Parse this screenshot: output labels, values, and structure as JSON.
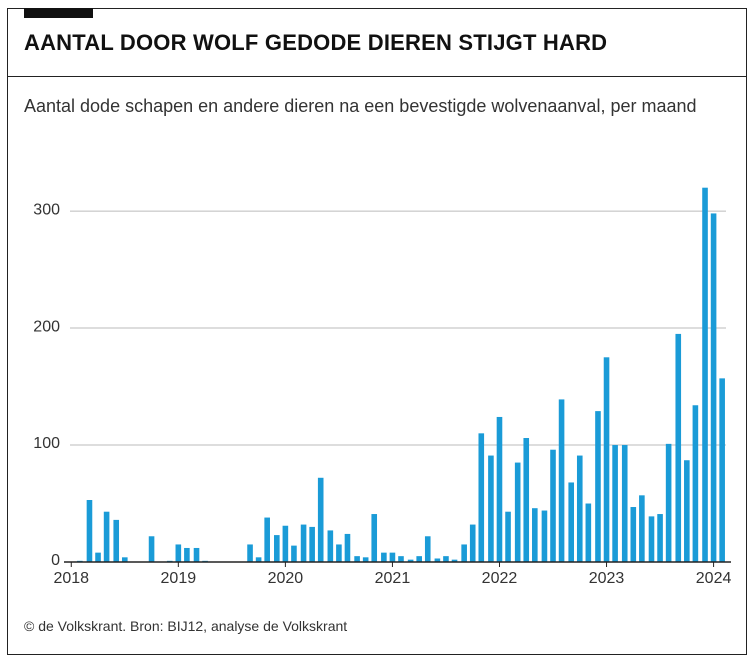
{
  "chart_data": {
    "type": "bar",
    "title": "AANTAL DOOR WOLF GEDODE DIEREN STIJGT HARD",
    "subtitle": "Aantal dode schapen en andere dieren na een bevestigde wolvenaanval, per maand",
    "source": "© de Volkskrant. Bron: BIJ12, analyse de Volkskrant",
    "color": "#1a9bd7",
    "grid": true,
    "x": [
      2018.08,
      2018.17,
      2018.25,
      2018.33,
      2018.42,
      2018.5,
      2018.58,
      2018.67,
      2018.75,
      2018.83,
      2018.92,
      2019,
      2019.08,
      2019.17,
      2019.25,
      2019.33,
      2019.42,
      2019.5,
      2019.58,
      2019.67,
      2019.75,
      2019.83,
      2019.92,
      2020,
      2020.08,
      2020.17,
      2020.25,
      2020.33,
      2020.42,
      2020.5,
      2020.58,
      2020.67,
      2020.75,
      2020.83,
      2020.92,
      2021,
      2021.08,
      2021.17,
      2021.25,
      2021.33,
      2021.42,
      2021.5,
      2021.58,
      2021.67,
      2021.75,
      2021.83,
      2021.92,
      2022,
      2022.08,
      2022.17,
      2022.25,
      2022.33,
      2022.42,
      2022.5,
      2022.58,
      2022.67,
      2022.75,
      2022.83,
      2022.92,
      2023,
      2023.08,
      2023.17,
      2023.25,
      2023.33,
      2023.42,
      2023.5,
      2023.58,
      2023.67,
      2023.75,
      2023.83,
      2023.92,
      2024,
      2024.08
    ],
    "values": [
      1,
      53,
      8,
      43,
      36,
      4,
      0,
      0,
      22,
      0,
      1,
      15,
      12,
      12,
      1,
      0,
      0,
      0,
      0,
      15,
      4,
      38,
      23,
      31,
      14,
      32,
      30,
      72,
      27,
      15,
      24,
      5,
      4,
      41,
      8,
      8,
      5,
      2,
      5,
      22,
      3,
      5,
      2,
      15,
      32,
      110,
      91,
      124,
      43,
      85,
      106,
      46,
      44,
      96,
      139,
      68,
      91,
      50,
      129,
      175,
      100,
      100,
      47,
      57,
      39,
      41,
      101,
      195,
      87,
      134,
      320,
      298,
      157
    ],
    "xlim": [
      2017.82,
      2024.2
    ],
    "xticks": [
      2018,
      2019,
      2020,
      2021,
      2022,
      2023,
      2024
    ],
    "ylim": [
      0,
      330
    ],
    "yticks": [
      0,
      100,
      200,
      300
    ]
  }
}
